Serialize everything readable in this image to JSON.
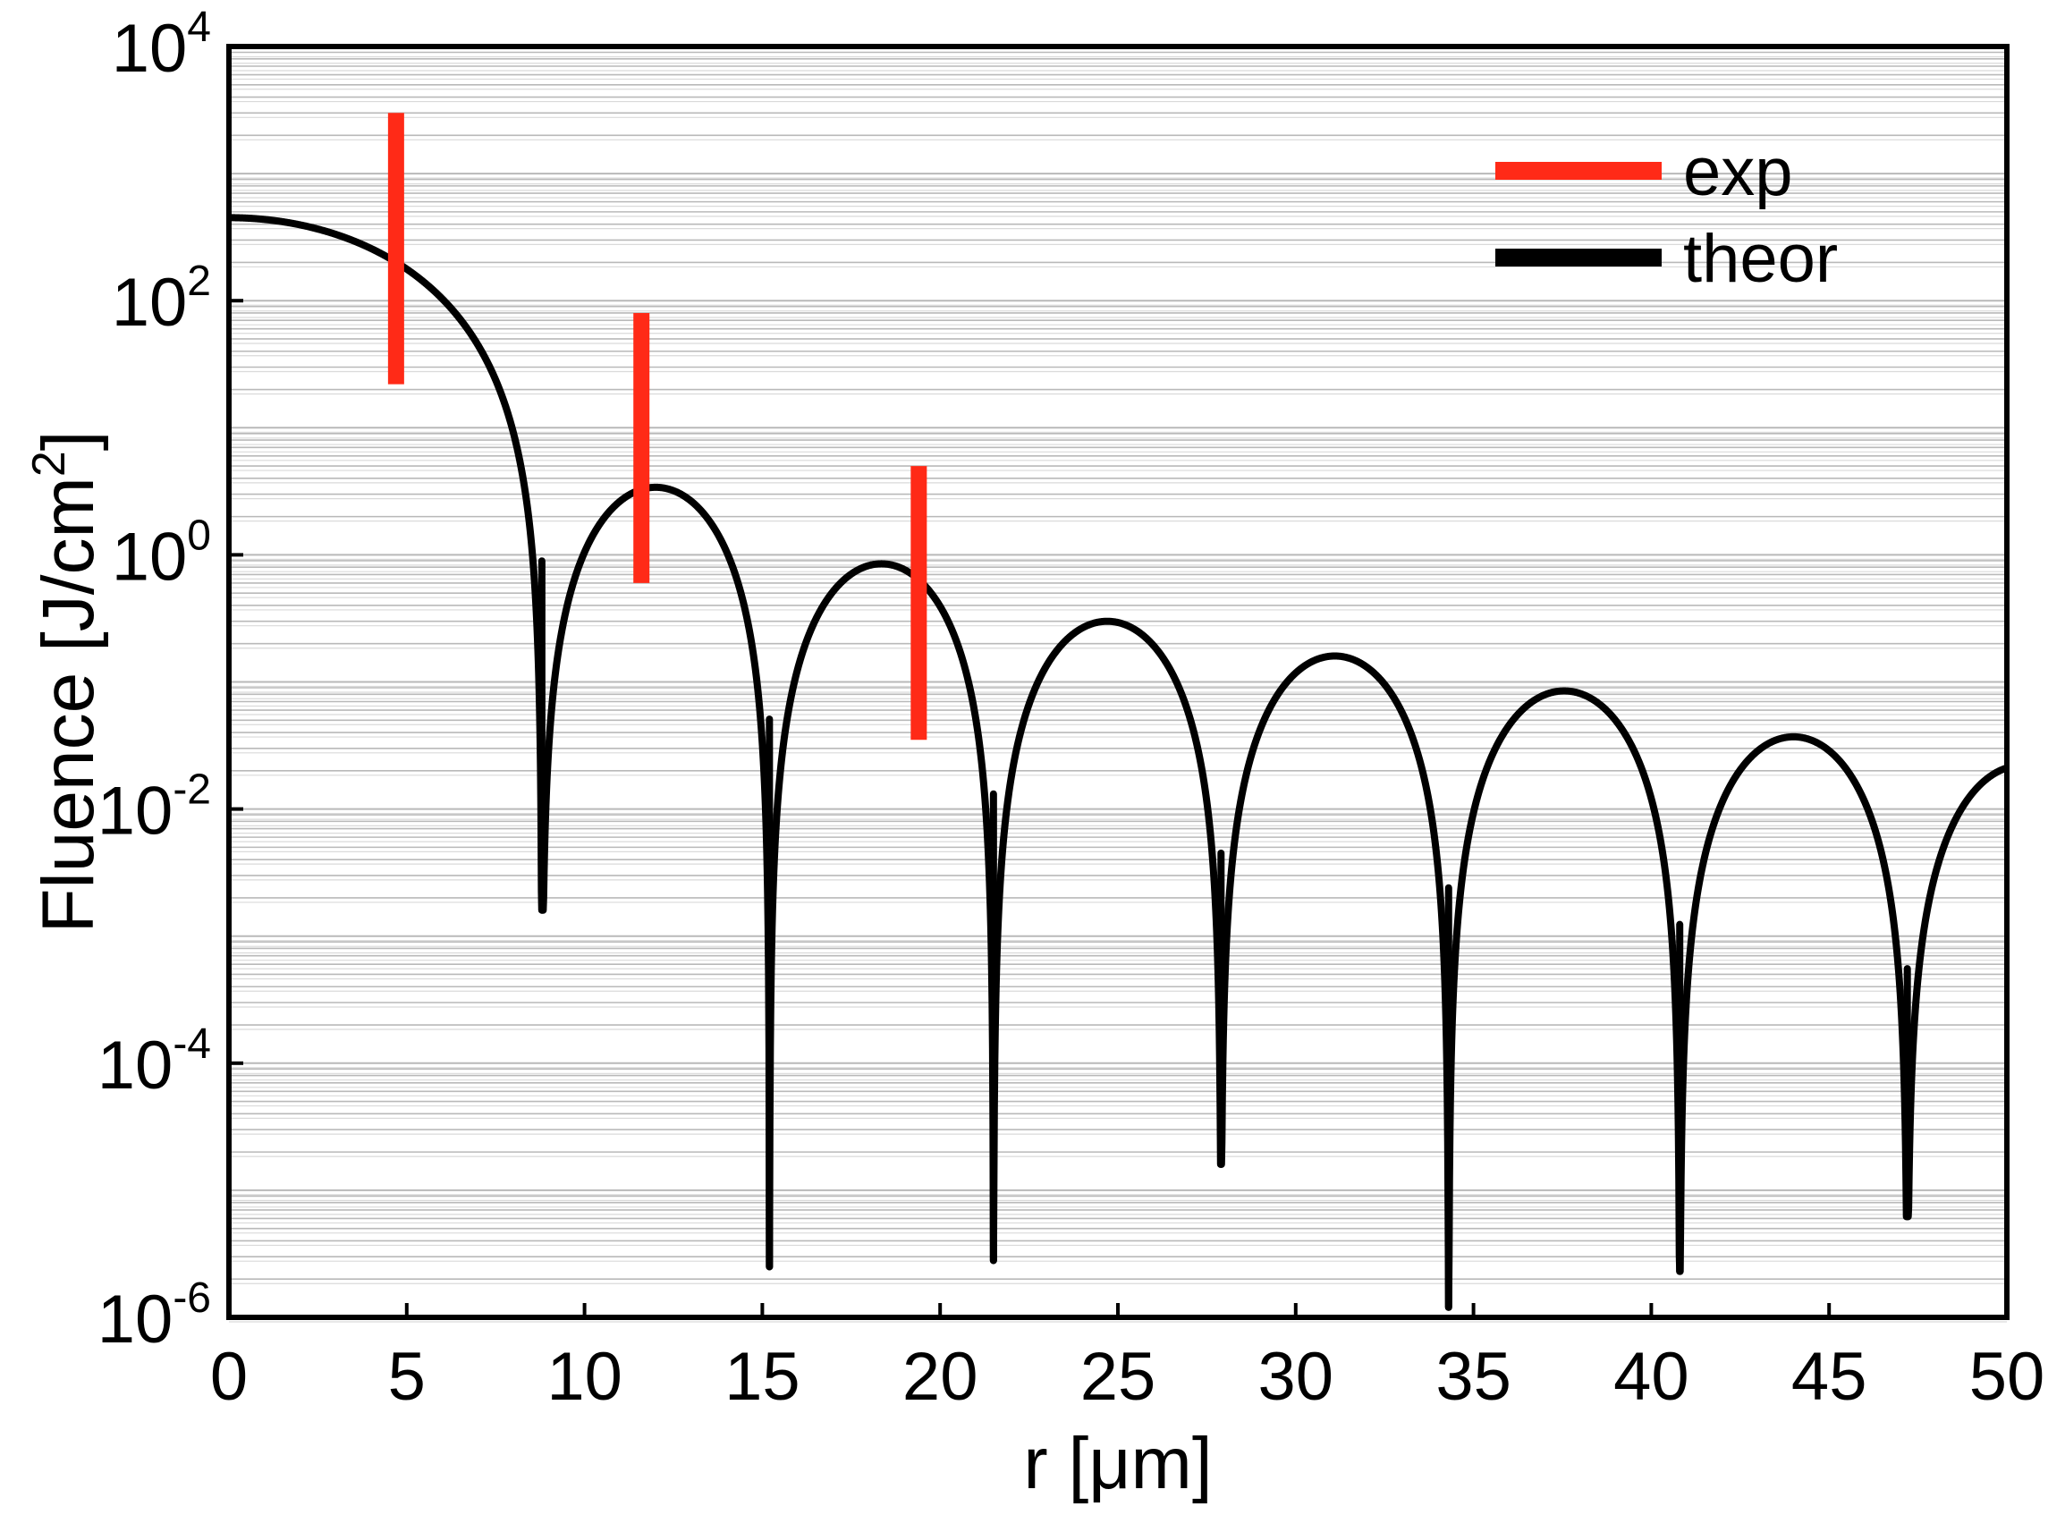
{
  "chart_data": {
    "type": "line",
    "xlabel": "r [μm]",
    "ylabel": "Fluence [J/cm2]",
    "ylabel_parts": {
      "main": "Fluence [J/cm",
      "sup": "2",
      "close": "]"
    },
    "xlim": [
      0,
      50
    ],
    "ylim": [
      1e-06,
      10000
    ],
    "yscale": "log",
    "grid": "horizontal minor gridlines",
    "legend_position": "top-right",
    "x_ticks": [
      0,
      5,
      10,
      15,
      20,
      25,
      30,
      35,
      40,
      45,
      50
    ],
    "x_tick_labels": [
      "0",
      "5",
      "10",
      "15",
      "20",
      "25",
      "30",
      "35",
      "40",
      "45",
      "50"
    ],
    "y_ticks": [
      {
        "value": 10000,
        "base": "10",
        "exp": "4"
      },
      {
        "value": 100,
        "base": "10",
        "exp": "2"
      },
      {
        "value": 1,
        "base": "10",
        "exp": "0"
      },
      {
        "value": 0.01,
        "base": "10",
        "exp": "-2"
      },
      {
        "value": 0.0001,
        "base": "10",
        "exp": "-4"
      },
      {
        "value": 1e-06,
        "base": "10",
        "exp": "-6"
      }
    ],
    "series": [
      {
        "name": "exp",
        "kind": "range-bars",
        "color": "#ff2a17",
        "bars": [
          {
            "x": 4.7,
            "ymin": 22,
            "ymax": 3000
          },
          {
            "x": 11.6,
            "ymin": 0.6,
            "ymax": 80
          },
          {
            "x": 19.4,
            "ymin": 0.035,
            "ymax": 5
          }
        ]
      },
      {
        "name": "theor",
        "kind": "line",
        "color": "#000000",
        "r0": 8.8,
        "peak": 450,
        "minima": [
          {
            "x": 8.8,
            "y": 0.0016
          },
          {
            "x": 15.2,
            "y": 2.5e-06
          },
          {
            "x": 21.5,
            "y": 2.8e-06
          },
          {
            "x": 27.9,
            "y": 1.6e-05
          },
          {
            "x": 34.3,
            "y": 1.2e-06
          },
          {
            "x": 40.8,
            "y": 2.3e-06
          },
          {
            "x": 47.2,
            "y": 6.2e-06
          }
        ]
      }
    ]
  }
}
